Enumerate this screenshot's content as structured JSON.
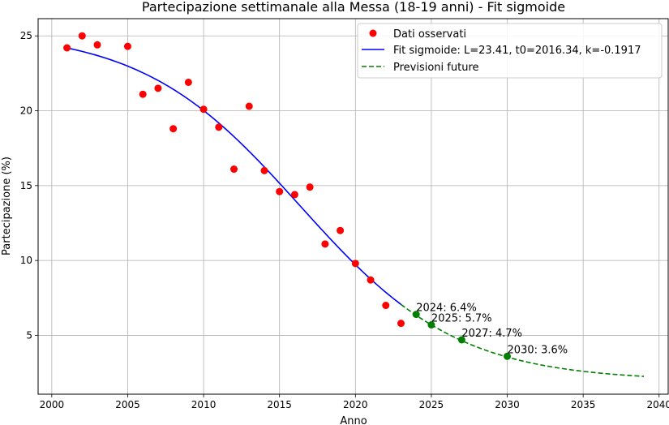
{
  "chart_data": {
    "type": "scatter",
    "title": "Partecipazione settimanale alla Messa (18-19 anni) - Fit sigmoide",
    "xlabel": "Anno",
    "ylabel": "Partecipazione (%)",
    "xlim": [
      1999.1,
      2040.6
    ],
    "ylim": [
      1.07,
      26.15
    ],
    "xticks": [
      2000,
      2005,
      2010,
      2015,
      2020,
      2025,
      2030,
      2035,
      2040
    ],
    "yticks": [
      5,
      10,
      15,
      20,
      25
    ],
    "grid": true,
    "legend_position": "top-right",
    "colors": {
      "observed": "#ff0000",
      "fit": "#0000ff",
      "forecast": "#008000"
    },
    "observed": {
      "name": "Dati osservati",
      "points": [
        [
          2001,
          24.2
        ],
        [
          2002,
          25.0
        ],
        [
          2003,
          24.4
        ],
        [
          2005,
          24.3
        ],
        [
          2006,
          21.1
        ],
        [
          2007,
          21.5
        ],
        [
          2008,
          18.8
        ],
        [
          2009,
          21.9
        ],
        [
          2010,
          20.1
        ],
        [
          2011,
          18.9
        ],
        [
          2012,
          16.1
        ],
        [
          2013,
          20.3
        ],
        [
          2014,
          16.0
        ],
        [
          2015,
          14.6
        ],
        [
          2016,
          14.4
        ],
        [
          2017,
          14.9
        ],
        [
          2018,
          11.1
        ],
        [
          2019,
          12.0
        ],
        [
          2020,
          9.8
        ],
        [
          2021,
          8.7
        ],
        [
          2022,
          7.0
        ],
        [
          2023,
          5.8
        ]
      ]
    },
    "fit": {
      "name": "Fit sigmoide: L=23.41, t0=2016.34, k=-0.1917",
      "x_range": [
        2001,
        2023
      ],
      "L": 23.41,
      "t0": 2016.34,
      "k": -0.1917,
      "offset": 1.96
    },
    "forecast": {
      "name": "Previsioni future",
      "x_range": [
        2023,
        2039
      ],
      "points": [
        [
          2024,
          6.4
        ],
        [
          2025,
          5.7
        ],
        [
          2027,
          4.7
        ],
        [
          2030,
          3.6
        ]
      ],
      "annotations": [
        "2024: 6.4%",
        "2025: 5.7%",
        "2027: 4.7%",
        "2030: 3.6%"
      ]
    }
  }
}
